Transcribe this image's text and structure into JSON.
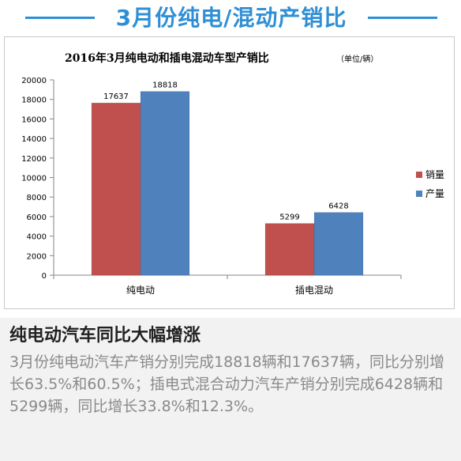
{
  "header": {
    "title": "3月份纯电/混动产销比"
  },
  "chart_data": {
    "type": "bar",
    "title": "2016年3月纯电动和插电混动车型产销比",
    "unit": "（单位/辆）",
    "categories": [
      "纯电动",
      "插电混动"
    ],
    "series": [
      {
        "name": "销量",
        "values": [
          17637,
          5299
        ],
        "color": "#c0504d"
      },
      {
        "name": "产量",
        "values": [
          18818,
          6428
        ],
        "color": "#4f81bd"
      }
    ],
    "ylim": [
      0,
      20000
    ],
    "yticks": [
      0,
      2000,
      4000,
      6000,
      8000,
      10000,
      12000,
      14000,
      16000,
      18000,
      20000
    ],
    "xlabel": "",
    "ylabel": "",
    "grid": false,
    "legend": "right"
  },
  "summary": {
    "heading": "纯电动汽车同比大幅增涨",
    "body": "3月份纯电动汽车产销分别完成18818辆和17637辆，同比分别增长63.5%和60.5%；插电式混合动力汽车产销分别完成6428辆和5299辆，同比增长33.8%和12.3%。"
  }
}
